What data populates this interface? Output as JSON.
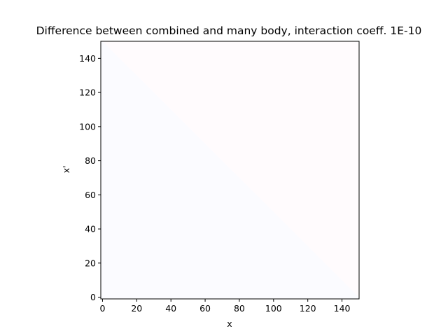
{
  "chart_data": {
    "type": "heatmap",
    "title": "Difference between combined and many body, interaction coeff. 1E-10",
    "xlabel": "x",
    "ylabel": "x'",
    "xlim": [
      -1,
      150
    ],
    "ylim": [
      -1,
      150
    ],
    "xticks": [
      0,
      20,
      40,
      60,
      80,
      100,
      120,
      140
    ],
    "yticks": [
      0,
      20,
      40,
      60,
      80,
      100,
      120,
      140
    ],
    "grid": false,
    "colormap": "diverging blue-white-red",
    "colors": {
      "below_diagonal": "#fbfbff",
      "above_diagonal": "#fffbfd"
    },
    "diagonal": {
      "description_values": [
        [
          0,
          150
        ],
        [
          150,
          0
        ]
      ]
    }
  }
}
